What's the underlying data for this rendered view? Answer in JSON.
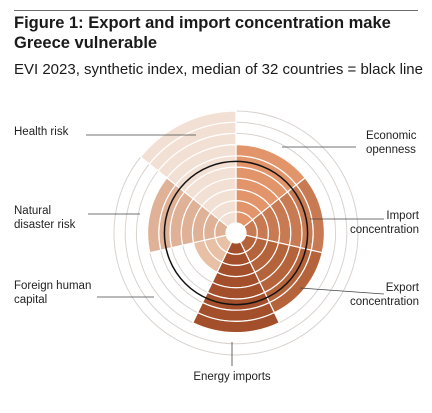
{
  "header": {
    "title": "Figure 1: Export and import concentration make Greece vulnerable",
    "subtitle": "EVI 2023, synthetic index, median of 32 countries = black line"
  },
  "chart_data": {
    "type": "polar-area",
    "categories": [
      "Economic openness",
      "Import concentration",
      "Export concentration",
      "Energy imports",
      "Foreign human capital",
      "Natural disaster risk",
      "Health risk"
    ],
    "label_lines": [
      [
        "Economic",
        "openness"
      ],
      [
        "Import",
        "concentration"
      ],
      [
        "Export",
        "concentration"
      ],
      [
        "Energy imports"
      ],
      [
        "Foreign human",
        "capital"
      ],
      [
        "Natural",
        "disaster risk"
      ],
      [
        "Health risk"
      ]
    ],
    "values": [
      7,
      7,
      7,
      8,
      3,
      7,
      10
    ],
    "median": 5.5,
    "rings": 10,
    "colors": {
      "Economic openness": "#e2956a",
      "Import concentration": "#c87a52",
      "Export concentration": "#b5633a",
      "Energy imports": "#a44f2c",
      "Foreign human capital": "#e8c0a6",
      "Natural disaster risk": "#dfb196",
      "Health risk": "#f2e0d4"
    },
    "grid_color": "#d9d3cf",
    "median_color": "#111111"
  }
}
